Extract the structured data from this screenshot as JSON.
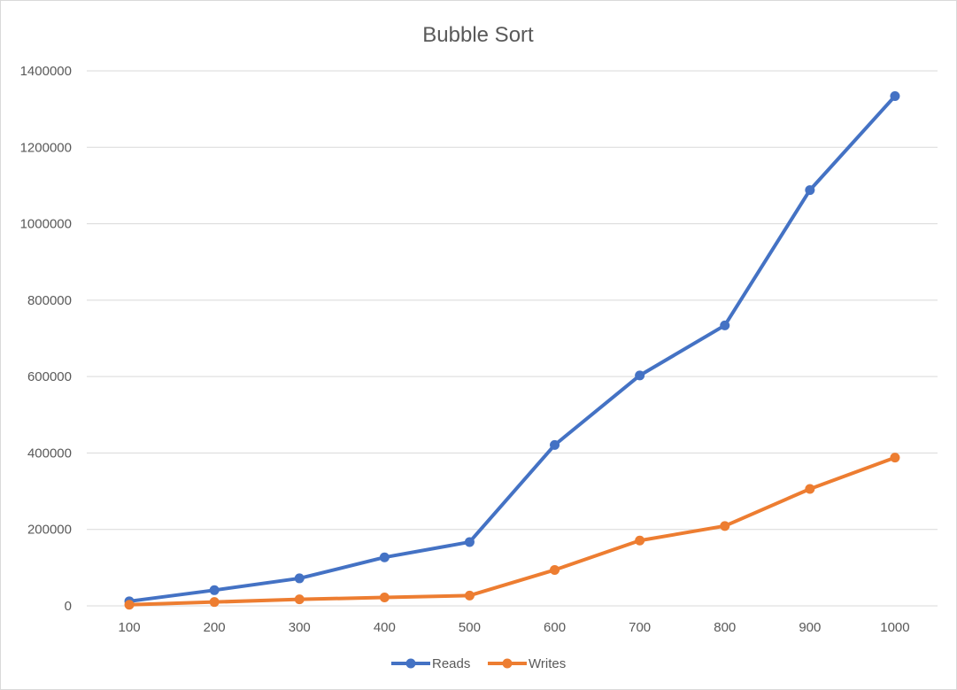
{
  "chart_data": {
    "type": "line",
    "title": "Bubble Sort",
    "xlabel": "",
    "ylabel": "",
    "categories": [
      "100",
      "200",
      "300",
      "400",
      "500",
      "600",
      "700",
      "800",
      "900",
      "1000"
    ],
    "ylim": [
      0,
      1400000
    ],
    "yticks": [
      "0",
      "200000",
      "400000",
      "600000",
      "800000",
      "1000000",
      "1200000",
      "1400000"
    ],
    "grid": true,
    "legend_position": "bottom",
    "series": [
      {
        "name": "Reads",
        "color": "#4472C4",
        "values": [
          12000,
          41000,
          72000,
          127000,
          167000,
          421000,
          603000,
          734000,
          1088000,
          1334000
        ]
      },
      {
        "name": "Writes",
        "color": "#ED7D31",
        "values": [
          3000,
          10000,
          17000,
          22000,
          27000,
          94000,
          171000,
          209000,
          306000,
          388000
        ]
      }
    ]
  }
}
